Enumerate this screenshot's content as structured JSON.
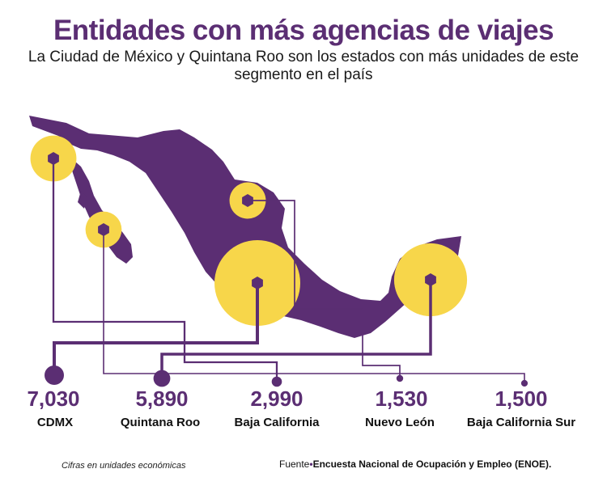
{
  "header": {
    "title": "Entidades con más  agencias de viajes",
    "subtitle": "La Ciudad de México y Quintana Roo son los estados con más unidades de este segmento en el país"
  },
  "map": {
    "region": "México",
    "style": "bubbles",
    "colors": {
      "land": "#5b2e73",
      "bubble": "#f7d64a",
      "line": "#5b2e73"
    }
  },
  "chart_data": {
    "type": "bubble-map",
    "title": "Entidades con más  agencias de viajes",
    "unit_note": "Cifras en unidades económicas",
    "entities": [
      {
        "name": "CDMX",
        "value_label": "7,030",
        "value": 7030
      },
      {
        "name": "Quintana Roo",
        "value_label": "5,890",
        "value": 5890
      },
      {
        "name": "Baja California",
        "value_label": "2,990",
        "value": 2990
      },
      {
        "name": "Nuevo León",
        "value_label": "1,530",
        "value": 1530
      },
      {
        "name": "Baja California Sur",
        "value_label": "1,500",
        "value": 1500
      }
    ]
  },
  "footer": {
    "note": "Cifras en unidades económicas",
    "source_label": "Fuente",
    "source_bullet": "•",
    "source_text": "Encuesta Nacional de Ocupación y Empleo (ENOE)."
  }
}
